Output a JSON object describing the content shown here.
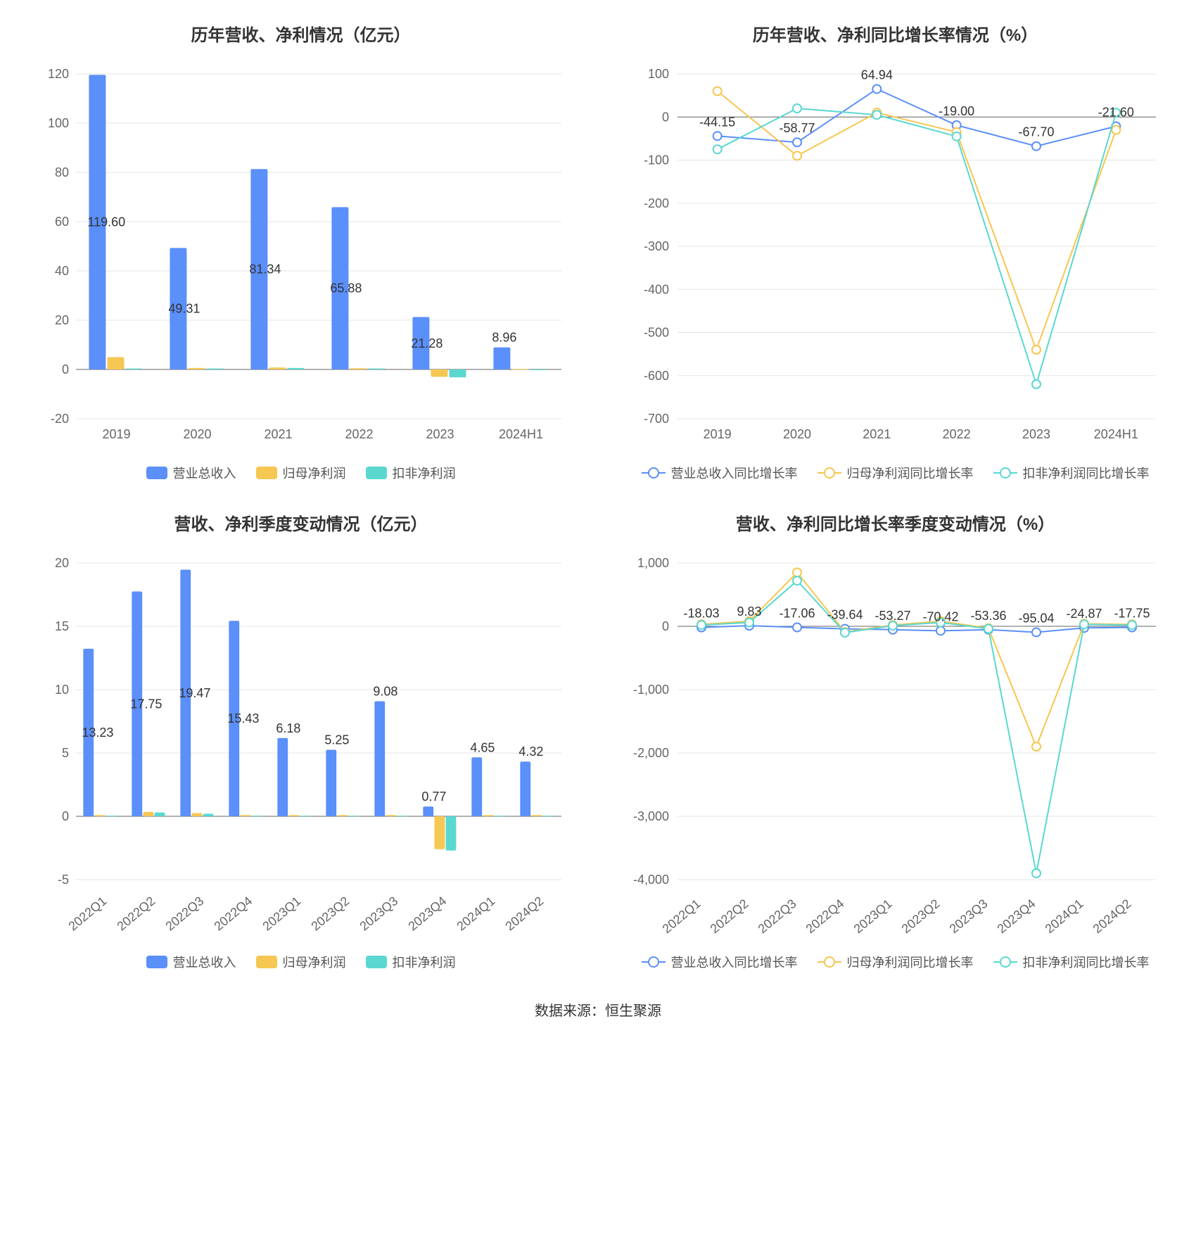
{
  "source_label": "数据来源：恒生聚源",
  "colors": {
    "blue": "#5b8ff9",
    "yellow": "#f6c752",
    "teal": "#5ad8d0",
    "grid": "#e5e5e5",
    "axis": "#666666",
    "bg": "#ffffff"
  },
  "charts": {
    "annual_bar": {
      "type": "bar",
      "title": "历年营收、净利情况（亿元）",
      "categories": [
        "2019",
        "2020",
        "2021",
        "2022",
        "2023",
        "2024H1"
      ],
      "series": [
        {
          "key": "rev",
          "name": "营业总收入",
          "color": "#5b8ff9",
          "values": [
            119.6,
            49.31,
            81.34,
            65.88,
            21.28,
            8.96
          ]
        },
        {
          "key": "profit",
          "name": "归母净利润",
          "color": "#f6c752",
          "values": [
            5.0,
            0.6,
            0.8,
            0.5,
            -3.0,
            0.2
          ]
        },
        {
          "key": "adj",
          "name": "扣非净利润",
          "color": "#5ad8d0",
          "values": [
            0.4,
            0.4,
            0.6,
            0.4,
            -3.2,
            -0.3
          ]
        }
      ],
      "value_labels": [
        119.6,
        49.31,
        81.34,
        65.88,
        21.28,
        8.96
      ],
      "ymin": -20,
      "ymax": 120,
      "ystep": 20,
      "title_fontsize": 24,
      "tick_fontsize": 18,
      "label_fontsize": 18,
      "bar_group_width": 0.68,
      "legend": [
        {
          "name": "营业总收入",
          "color": "#5b8ff9",
          "shape": "bar"
        },
        {
          "name": "归母净利润",
          "color": "#f6c752",
          "shape": "bar"
        },
        {
          "name": "扣非净利润",
          "color": "#5ad8d0",
          "shape": "bar"
        }
      ]
    },
    "annual_growth": {
      "type": "line",
      "title": "历年营收、净利同比增长率情况（%）",
      "categories": [
        "2019",
        "2020",
        "2021",
        "2022",
        "2023",
        "2024H1"
      ],
      "series": [
        {
          "key": "rev_g",
          "name": "营业总收入同比增长率",
          "color": "#5b8ff9",
          "values": [
            -44.15,
            -58.77,
            64.94,
            -19.0,
            -67.7,
            -21.6
          ]
        },
        {
          "key": "profit_g",
          "name": "归母净利润同比增长率",
          "color": "#f6c752",
          "values": [
            60.0,
            -90.0,
            10.0,
            -35.0,
            -540.0,
            -30.0
          ]
        },
        {
          "key": "adj_g",
          "name": "扣非净利润同比增长率",
          "color": "#5ad8d0",
          "values": [
            -75.0,
            20.0,
            5.0,
            -45.0,
            -620.0,
            10.0
          ]
        }
      ],
      "point_labels": [
        {
          "cat": "2019",
          "series": "rev_g",
          "text": "-44.15"
        },
        {
          "cat": "2020",
          "series": "rev_g",
          "text": "-58.77"
        },
        {
          "cat": "2021",
          "series": "rev_g",
          "text": "64.94"
        },
        {
          "cat": "2022",
          "series": "rev_g",
          "text": "-19.00"
        },
        {
          "cat": "2023",
          "series": "rev_g",
          "text": "-67.70"
        },
        {
          "cat": "2024H1",
          "series": "rev_g",
          "text": "-21.60"
        }
      ],
      "ymin": -700,
      "ymax": 100,
      "ystep": 100,
      "title_fontsize": 24,
      "tick_fontsize": 18,
      "label_fontsize": 16,
      "marker_radius": 6,
      "line_width": 2,
      "legend": [
        {
          "name": "营业总收入同比增长率",
          "color": "#5b8ff9",
          "shape": "line"
        },
        {
          "name": "归母净利润同比增长率",
          "color": "#f6c752",
          "shape": "line"
        },
        {
          "name": "扣非净利润同比增长率",
          "color": "#5ad8d0",
          "shape": "line"
        }
      ]
    },
    "quarterly_bar": {
      "type": "bar",
      "title": "营收、净利季度变动情况（亿元）",
      "categories": [
        "2022Q1",
        "2022Q2",
        "2022Q3",
        "2022Q4",
        "2023Q1",
        "2023Q2",
        "2023Q3",
        "2023Q4",
        "2024Q1",
        "2024Q2"
      ],
      "rotate_xlabels": true,
      "series": [
        {
          "key": "rev",
          "name": "营业总收入",
          "color": "#5b8ff9",
          "values": [
            13.23,
            17.75,
            19.47,
            15.43,
            6.18,
            5.25,
            9.08,
            0.77,
            4.65,
            4.32
          ]
        },
        {
          "key": "profit",
          "name": "归母净利润",
          "color": "#f6c752",
          "values": [
            0.1,
            0.35,
            0.25,
            0.1,
            0.1,
            0.1,
            0.1,
            -2.6,
            0.1,
            0.1
          ]
        },
        {
          "key": "adj",
          "name": "扣非净利润",
          "color": "#5ad8d0",
          "values": [
            0.05,
            0.3,
            0.2,
            0.05,
            0.05,
            0.05,
            0.05,
            -2.7,
            0.05,
            0.05
          ]
        }
      ],
      "value_labels": [
        13.23,
        17.75,
        19.47,
        15.43,
        6.18,
        5.25,
        9.08,
        0.77,
        4.65,
        4.32
      ],
      "ymin": -5,
      "ymax": 20,
      "ystep": 5,
      "title_fontsize": 24,
      "tick_fontsize": 18,
      "label_fontsize": 18,
      "bar_group_width": 0.7,
      "legend": [
        {
          "name": "营业总收入",
          "color": "#5b8ff9",
          "shape": "bar"
        },
        {
          "name": "归母净利润",
          "color": "#f6c752",
          "shape": "bar"
        },
        {
          "name": "扣非净利润",
          "color": "#5ad8d0",
          "shape": "bar"
        }
      ]
    },
    "quarterly_growth": {
      "type": "line",
      "title": "营收、净利同比增长率季度变动情况（%）",
      "categories": [
        "2022Q1",
        "2022Q2",
        "2022Q3",
        "2022Q4",
        "2023Q1",
        "2023Q2",
        "2023Q3",
        "2023Q4",
        "2024Q1",
        "2024Q2"
      ],
      "rotate_xlabels": true,
      "series": [
        {
          "key": "rev_g",
          "name": "营业总收入同比增长率",
          "color": "#5b8ff9",
          "values": [
            -18.03,
            9.83,
            -17.06,
            -39.64,
            -53.27,
            -70.42,
            -53.36,
            -95.04,
            -24.87,
            -17.75
          ]
        },
        {
          "key": "profit_g",
          "name": "归母净利润同比增长率",
          "color": "#f6c752",
          "values": [
            30,
            80,
            850,
            -90,
            20,
            80,
            -30,
            -1900,
            40,
            30
          ]
        },
        {
          "key": "adj_g",
          "name": "扣非净利润同比增长率",
          "color": "#5ad8d0",
          "values": [
            20,
            60,
            720,
            -100,
            10,
            60,
            -40,
            -3900,
            30,
            20
          ]
        }
      ],
      "point_labels": [
        {
          "cat": "2022Q1",
          "series": "rev_g",
          "text": "-18.03"
        },
        {
          "cat": "2022Q2",
          "series": "rev_g",
          "text": "9.83"
        },
        {
          "cat": "2022Q3",
          "series": "rev_g",
          "text": "-17.06"
        },
        {
          "cat": "2022Q4",
          "series": "rev_g",
          "text": "-39.64"
        },
        {
          "cat": "2023Q1",
          "series": "rev_g",
          "text": "-53.27"
        },
        {
          "cat": "2023Q2",
          "series": "rev_g",
          "text": "-70.42"
        },
        {
          "cat": "2023Q3",
          "series": "rev_g",
          "text": "-53.36"
        },
        {
          "cat": "2023Q4",
          "series": "rev_g",
          "text": "-95.04"
        },
        {
          "cat": "2024Q1",
          "series": "rev_g",
          "text": "-24.87"
        },
        {
          "cat": "2024Q2",
          "series": "rev_g",
          "text": "-17.75"
        }
      ],
      "ymin": -4000,
      "ymax": 1000,
      "ystep": 1000,
      "title_fontsize": 24,
      "tick_fontsize": 18,
      "label_fontsize": 15,
      "marker_radius": 6,
      "line_width": 2,
      "legend": [
        {
          "name": "营业总收入同比增长率",
          "color": "#5b8ff9",
          "shape": "line"
        },
        {
          "name": "归母净利润同比增长率",
          "color": "#f6c752",
          "shape": "line"
        },
        {
          "name": "扣非净利润同比增长率",
          "color": "#5ad8d0",
          "shape": "line"
        }
      ]
    }
  }
}
